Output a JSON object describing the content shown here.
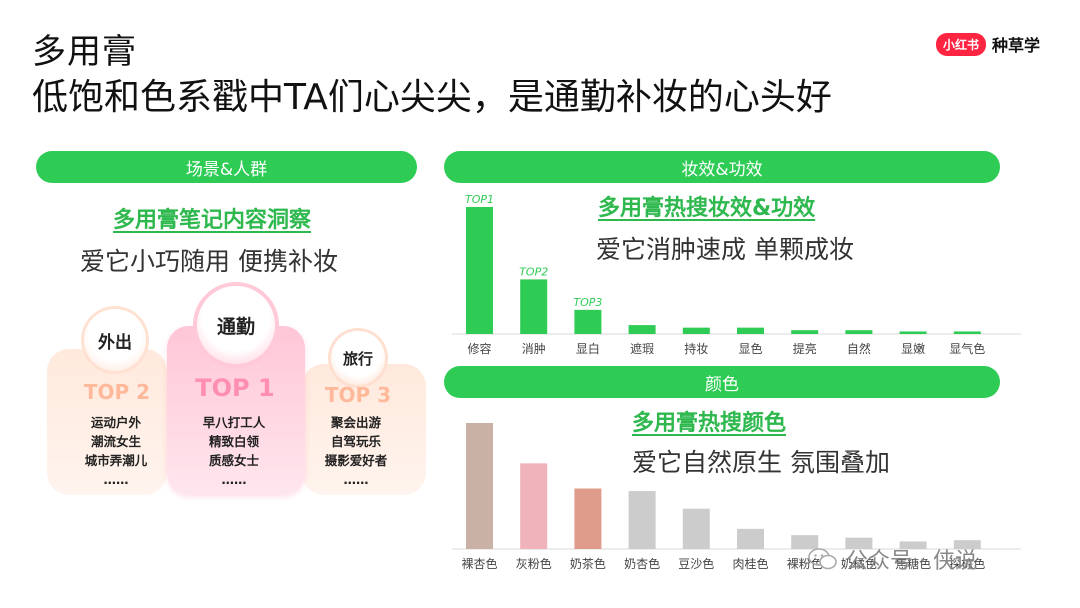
{
  "header": {
    "title": "多用膏",
    "subtitle": "低饱和色系戳中TA们心尖尖，是通勤补妆的心头好",
    "logo_badge": "小红书",
    "logo_text": "种草学"
  },
  "scene": {
    "section_label": "场景&人群",
    "heading": "多用膏笔记内容洞察",
    "tagline": "爱它小巧随用 便携补妆",
    "cards": [
      {
        "bubble": "外出",
        "rank": "TOP 2",
        "items": [
          "运动户外",
          "潮流女生",
          "城市弄潮儿",
          "……"
        ]
      },
      {
        "bubble": "通勤",
        "rank": "TOP 1",
        "items": [
          "早八打工人",
          "精致白领",
          "质感女士",
          "……"
        ]
      },
      {
        "bubble": "旅行",
        "rank": "TOP 3",
        "items": [
          "聚会出游",
          "自驾玩乐",
          "摄影爱好者",
          "……"
        ]
      }
    ]
  },
  "effect": {
    "section_label": "妆效&功效",
    "heading": "多用膏热搜妆效&功效",
    "tagline": "爱它消肿速成 单颗成妆"
  },
  "color": {
    "section_label": "颜色",
    "heading": "多用膏热搜颜色",
    "tagline": "爱它自然原生 氛围叠加"
  },
  "watermark": "公众号 · 侠说",
  "chart_data": [
    {
      "type": "bar",
      "title": "多用膏热搜妆效&功效",
      "categories": [
        "修容",
        "消肿",
        "显白",
        "遮瑕",
        "持妆",
        "显色",
        "提亮",
        "自然",
        "显嫩",
        "显气色"
      ],
      "values": [
        100,
        43,
        19,
        7,
        5,
        5,
        3,
        3,
        2,
        2
      ],
      "annotations": [
        "TOP1",
        "TOP2",
        "TOP3",
        "",
        "",
        "",
        "",
        "",
        "",
        ""
      ],
      "colors": [
        "#2ecc55"
      ],
      "grid": false
    },
    {
      "type": "bar",
      "title": "多用膏热搜颜色",
      "categories": [
        "裸杏色",
        "灰粉色",
        "奶茶色",
        "奶杏色",
        "豆沙色",
        "肉桂色",
        "裸粉色",
        "奶橘色",
        "焦糖色",
        "探棕色"
      ],
      "values": [
        100,
        68,
        48,
        46,
        32,
        16,
        11,
        9,
        6,
        7
      ],
      "colors": [
        "#c9b1a6",
        "#f0b3bc",
        "#e09c8a",
        "#cccccc",
        "#cccccc",
        "#cccccc",
        "#cccccc",
        "#cccccc",
        "#cccccc",
        "#cccccc"
      ],
      "grid": false
    }
  ]
}
